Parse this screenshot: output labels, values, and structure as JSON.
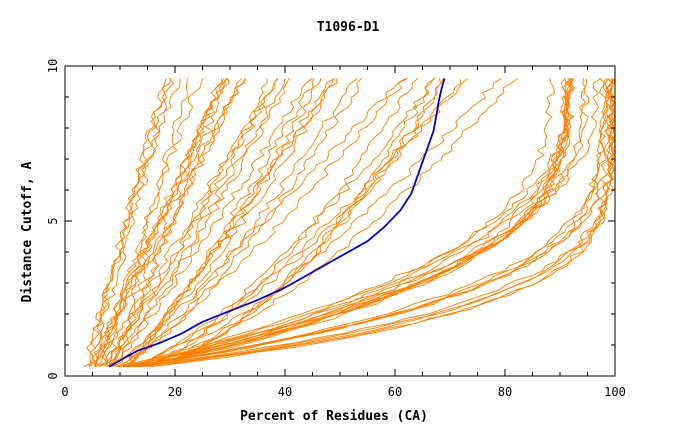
{
  "chart_data": {
    "type": "line",
    "title": "T1096-D1",
    "xlabel": "Percent of Residues (CA)",
    "ylabel": "Distance Cutoff, A",
    "xlim": [
      0,
      100
    ],
    "ylim": [
      0,
      10
    ],
    "x_ticks": [
      "0",
      "20",
      "40",
      "60",
      "80",
      "100"
    ],
    "y_ticks": [
      "0",
      "5",
      "10"
    ],
    "grid": false,
    "colors": {
      "background_series": "#ff8000",
      "highlight_series": "#0000cc"
    },
    "highlight": {
      "x": [
        8,
        10,
        13,
        17,
        21,
        25,
        30,
        35,
        40,
        45,
        50,
        55,
        58,
        61,
        63,
        64,
        65,
        66,
        67,
        67.5,
        68,
        68.5,
        69
      ],
      "y": [
        0.3,
        0.5,
        0.8,
        1.05,
        1.35,
        1.75,
        2.1,
        2.45,
        2.85,
        3.35,
        3.85,
        4.35,
        4.8,
        5.35,
        5.9,
        6.4,
        6.9,
        7.4,
        7.9,
        8.4,
        8.9,
        9.3,
        9.6
      ]
    },
    "families": [
      {
        "count": 11,
        "x0": [
          4,
          9
        ],
        "xmax": [
          18,
          34
        ],
        "curve": [
          0.8,
          1.1
        ],
        "shape": "up"
      },
      {
        "count": 9,
        "x0": [
          6,
          10
        ],
        "xmax": [
          28,
          46
        ],
        "curve": [
          0.8,
          1.2
        ],
        "shape": "up"
      },
      {
        "count": 9,
        "x0": [
          8,
          12
        ],
        "xmax": [
          44,
          62
        ],
        "curve": [
          1.0,
          1.4
        ],
        "shape": "up"
      },
      {
        "count": 9,
        "x0": [
          9,
          14
        ],
        "xmax": [
          62,
          82
        ],
        "curve": [
          1.3,
          1.9
        ],
        "shape": "up"
      },
      {
        "count": 13,
        "x0": [
          10,
          15
        ],
        "xmax": [
          88,
          97
        ],
        "curve": [
          2.5,
          3.3
        ],
        "shape": "knee"
      },
      {
        "count": 5,
        "x0": [
          10,
          14
        ],
        "xmax": [
          97.5,
          99.5
        ],
        "curve": [
          3.2,
          4.2
        ],
        "shape": "knee"
      },
      {
        "count": 5,
        "x0": [
          12,
          16
        ],
        "xmax": [
          99,
          100
        ],
        "curve": [
          4.0,
          6.0
        ],
        "shape": "knee"
      }
    ]
  }
}
